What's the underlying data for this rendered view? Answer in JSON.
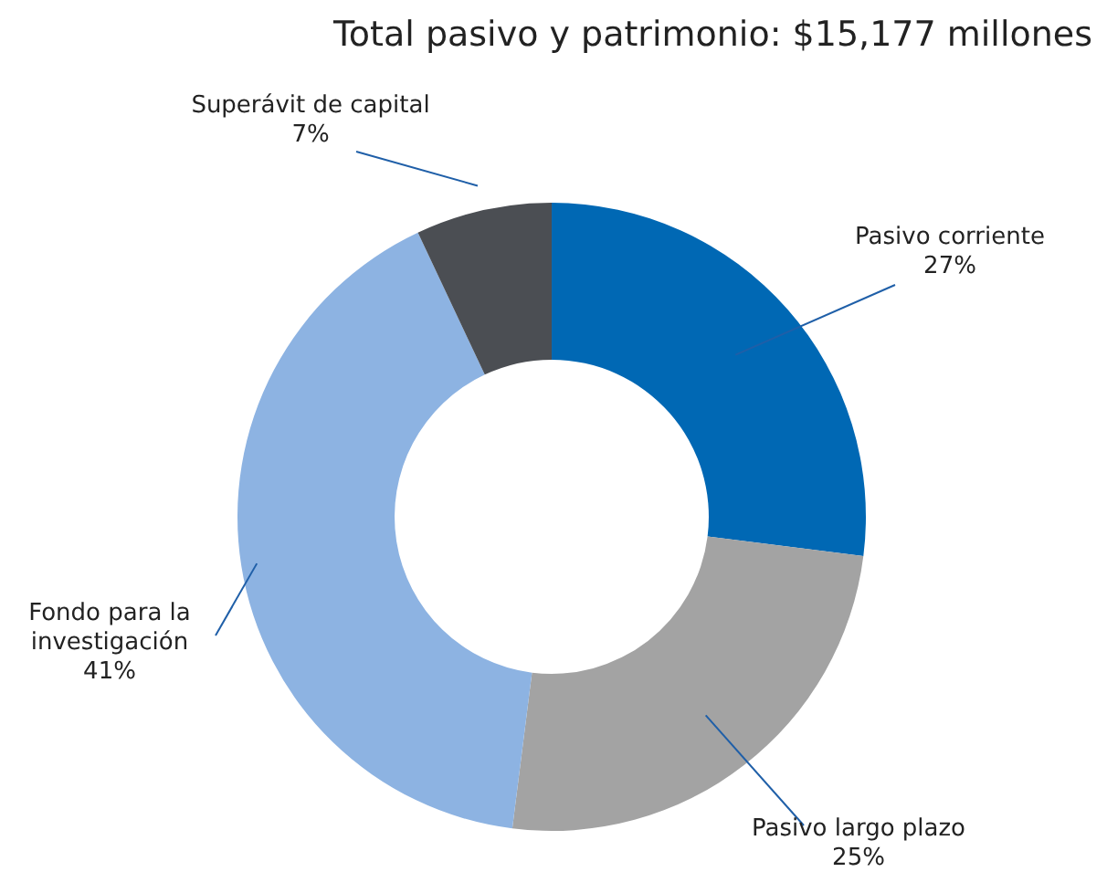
{
  "chart_data": {
    "type": "donut",
    "title": "Total pasivo y patrimonio: $15,177 millones",
    "categories": [
      "Pasivo corriente",
      "Pasivo largo plazo",
      "Fondo para la investigación",
      "Superávit de capital"
    ],
    "values": [
      27,
      25,
      41,
      7
    ],
    "value_labels": [
      "27%",
      "25%",
      "41%",
      "7%"
    ],
    "colors": [
      "#0068b4",
      "#a3a3a3",
      "#8db3e2",
      "#4b4e53"
    ]
  }
}
